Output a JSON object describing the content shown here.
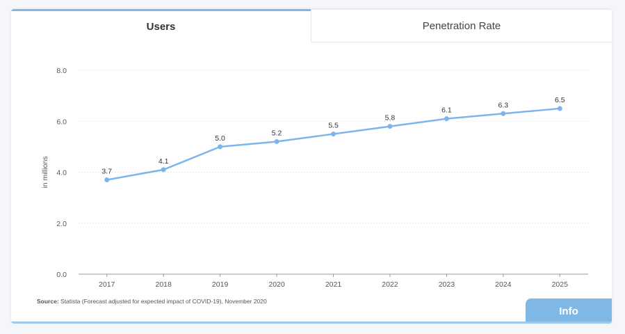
{
  "tabs": {
    "users_label": "Users",
    "penetration_label": "Penetration Rate"
  },
  "source": {
    "label": "Source:",
    "text": "Statista (Forecast adjusted for expected impact of COVID-19), November 2020"
  },
  "info_label": "Info",
  "colors": {
    "accent": "#7fb8e5",
    "line": "#7cb5ec"
  },
  "chart_data": {
    "type": "line",
    "categories": [
      "2017",
      "2018",
      "2019",
      "2020",
      "2021",
      "2022",
      "2023",
      "2024",
      "2025"
    ],
    "values": [
      3.7,
      4.1,
      5.0,
      5.2,
      5.5,
      5.8,
      6.1,
      6.3,
      6.5
    ],
    "data_labels": [
      "3.7",
      "4.1",
      "5.0",
      "5.2",
      "5.5",
      "5.8",
      "6.1",
      "6.3",
      "6.5"
    ],
    "ylabel": "in millions",
    "ylim": [
      0,
      8
    ],
    "yticks": [
      0,
      2,
      4,
      6,
      8
    ],
    "ytick_labels": [
      "0.0",
      "2.0",
      "4.0",
      "6.0",
      "8.0"
    ],
    "grid": "horizontal dotted"
  }
}
